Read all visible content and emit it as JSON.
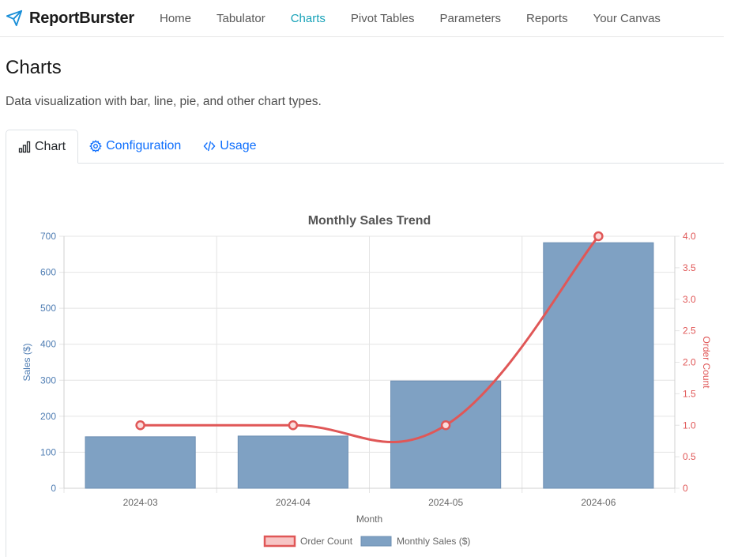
{
  "brand": {
    "name": "ReportBurster",
    "icon": "paper-plane-icon"
  },
  "nav": {
    "items": [
      {
        "label": "Home",
        "active": false
      },
      {
        "label": "Tabulator",
        "active": false
      },
      {
        "label": "Charts",
        "active": true
      },
      {
        "label": "Pivot Tables",
        "active": false
      },
      {
        "label": "Parameters",
        "active": false
      },
      {
        "label": "Reports",
        "active": false
      },
      {
        "label": "Your Canvas",
        "active": false
      }
    ],
    "active_color": "#17a2b8"
  },
  "page": {
    "title": "Charts",
    "subtitle": "Data visualization with bar, line, pie, and other chart types."
  },
  "tabs": [
    {
      "label": "Chart",
      "icon": "bar-chart-icon",
      "active": true
    },
    {
      "label": "Configuration",
      "icon": "gear-icon",
      "active": false
    },
    {
      "label": "Usage",
      "icon": "code-icon",
      "active": false
    }
  ],
  "chart_data": {
    "type": "bar",
    "title": "Monthly Sales Trend",
    "xlabel": "Month",
    "categories": [
      "2024-03",
      "2024-04",
      "2024-05",
      "2024-06"
    ],
    "series": [
      {
        "name": "Monthly Sales ($)",
        "type": "bar",
        "axis": "left",
        "values": [
          143,
          145,
          298,
          682
        ],
        "color": "#7fa1c3"
      },
      {
        "name": "Order Count",
        "type": "line",
        "axis": "right",
        "values": [
          1,
          1,
          1,
          4
        ],
        "color": "#e05757"
      }
    ],
    "y_left": {
      "label": "Sales ($)",
      "min": 0,
      "max": 700,
      "ticks": [
        "0",
        "100",
        "200",
        "300",
        "400",
        "500",
        "600",
        "700"
      ],
      "color": "#4f7db3"
    },
    "y_right": {
      "label": "Order Count",
      "min": 0,
      "max": 4,
      "ticks": [
        "0",
        "0.5",
        "1.0",
        "1.5",
        "2.0",
        "2.5",
        "3.0",
        "3.5",
        "4.0"
      ],
      "color": "#e05757"
    },
    "grid": true,
    "legend": "bottom",
    "legend_order": [
      "Order Count",
      "Monthly Sales ($)"
    ]
  }
}
